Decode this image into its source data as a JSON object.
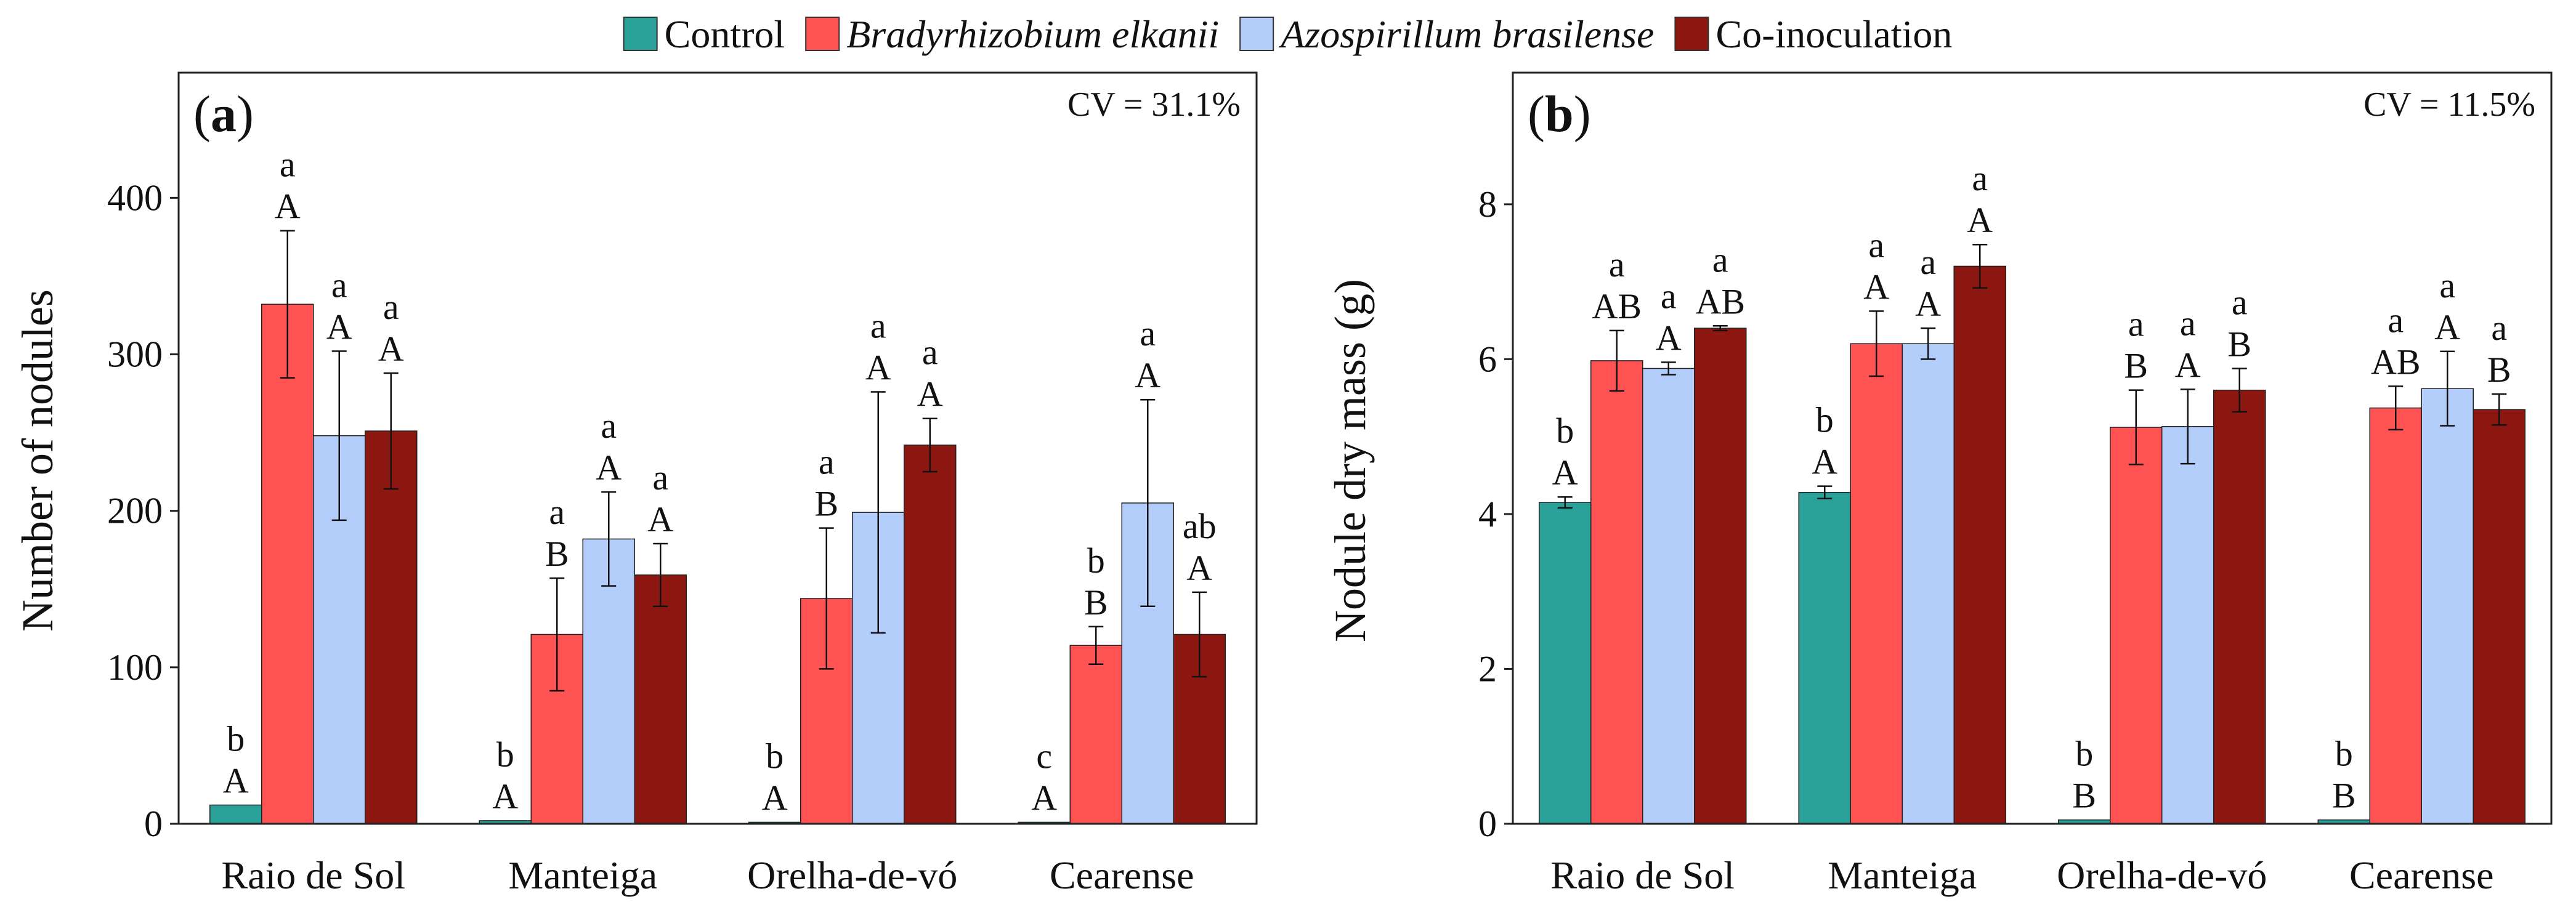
{
  "legend": [
    {
      "name": "Control",
      "italic": false,
      "color": "#2aa198"
    },
    {
      "name": "Bradyrhizobium elkanii",
      "italic": true,
      "color": "#ff5252"
    },
    {
      "name": "Azospirillum brasilense",
      "italic": true,
      "color": "#b3cdfa"
    },
    {
      "name": "Co-inoculation",
      "italic": false,
      "color": "#8b1710"
    }
  ],
  "chart_data": [
    {
      "type": "bar",
      "panel_label": "a",
      "cv": "CV = 31.1%",
      "ylabel": "Number of nodules",
      "xlabel": "",
      "ylim": [
        0,
        480
      ],
      "yticks": [
        0,
        100,
        200,
        300,
        400
      ],
      "categories": [
        "Raio de Sol",
        "Manteiga",
        "Orelha-de-vó",
        "Cearense"
      ],
      "series": [
        {
          "name": "Control",
          "values": [
            12,
            2,
            1,
            1
          ],
          "errors": [
            0,
            0,
            0,
            0
          ],
          "labels": [
            [
              "b",
              "A"
            ],
            [
              "b",
              "A"
            ],
            [
              "b",
              "A"
            ],
            [
              "c",
              "A"
            ]
          ]
        },
        {
          "name": "Bradyrhizobium elkanii",
          "values": [
            332,
            121,
            144,
            114
          ],
          "errors": [
            47,
            36,
            45,
            12
          ],
          "labels": [
            [
              "a",
              "A"
            ],
            [
              "a",
              "B"
            ],
            [
              "a",
              "B"
            ],
            [
              "b",
              "B"
            ]
          ]
        },
        {
          "name": "Azospirillum brasilense",
          "values": [
            248,
            182,
            199,
            205
          ],
          "errors": [
            54,
            30,
            77,
            66
          ],
          "labels": [
            [
              "a",
              "A"
            ],
            [
              "a",
              "A"
            ],
            [
              "a",
              "A"
            ],
            [
              "a",
              "A"
            ]
          ]
        },
        {
          "name": "Co-inoculation",
          "values": [
            251,
            159,
            242,
            121
          ],
          "errors": [
            37,
            20,
            17,
            27
          ],
          "labels": [
            [
              "a",
              "A"
            ],
            [
              "a",
              "A"
            ],
            [
              "a",
              "A"
            ],
            [
              "ab",
              "A"
            ]
          ]
        }
      ]
    },
    {
      "type": "bar",
      "panel_label": "b",
      "cv": "CV = 11.5%",
      "ylabel": "Nodule dry mass (g)",
      "xlabel": "",
      "ylim": [
        0,
        9.7
      ],
      "yticks": [
        0,
        2,
        4,
        6,
        8
      ],
      "categories": [
        "Raio de Sol",
        "Manteiga",
        "Orelha-de-vó",
        "Cearense"
      ],
      "series": [
        {
          "name": "Control",
          "values": [
            4.15,
            4.28,
            0.05,
            0.05
          ],
          "errors": [
            0.07,
            0.08,
            0,
            0
          ],
          "labels": [
            [
              "b",
              "A"
            ],
            [
              "b",
              "A"
            ],
            [
              "b",
              "B"
            ],
            [
              "b",
              "B"
            ]
          ]
        },
        {
          "name": "Bradyrhizobium elkanii",
          "values": [
            5.98,
            6.2,
            5.12,
            5.37
          ],
          "errors": [
            0.39,
            0.42,
            0.48,
            0.28
          ],
          "labels": [
            [
              "a",
              "AB"
            ],
            [
              "a",
              "A"
            ],
            [
              "a",
              "B"
            ],
            [
              "a",
              "AB"
            ]
          ]
        },
        {
          "name": "Azospirillum brasilense",
          "values": [
            5.88,
            6.2,
            5.13,
            5.62
          ],
          "errors": [
            0.08,
            0.2,
            0.48,
            0.48
          ],
          "labels": [
            [
              "a",
              "A"
            ],
            [
              "a",
              "A"
            ],
            [
              "a",
              "A"
            ],
            [
              "a",
              "A"
            ]
          ]
        },
        {
          "name": "Co-inoculation",
          "values": [
            6.4,
            7.2,
            5.6,
            5.35
          ],
          "errors": [
            0.03,
            0.28,
            0.28,
            0.2
          ],
          "labels": [
            [
              "a",
              "AB"
            ],
            [
              "a",
              "A"
            ],
            [
              "a",
              "B"
            ],
            [
              "a",
              "B"
            ]
          ]
        }
      ]
    }
  ]
}
